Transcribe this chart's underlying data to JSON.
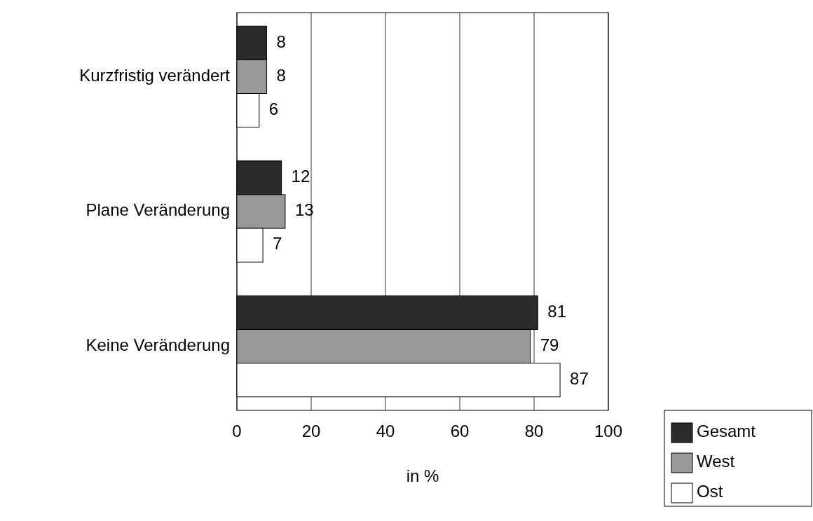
{
  "chart_data": {
    "type": "bar",
    "orientation": "horizontal",
    "categories": [
      "Kurzfristig verändert",
      "Plane Veränderung",
      "Keine Veränderung"
    ],
    "series": [
      {
        "name": "Gesamt",
        "color": "#2b2b2b",
        "values": [
          8,
          12,
          81
        ]
      },
      {
        "name": "West",
        "color": "#999999",
        "values": [
          8,
          13,
          79
        ]
      },
      {
        "name": "Ost",
        "color": "#ffffff",
        "values": [
          6,
          7,
          87
        ]
      }
    ],
    "xlim": [
      0,
      100
    ],
    "xticks": [
      0,
      20,
      40,
      60,
      80,
      100
    ],
    "xlabel": "in %",
    "grid": "x",
    "legend": "bottom right",
    "data_labels": true
  }
}
